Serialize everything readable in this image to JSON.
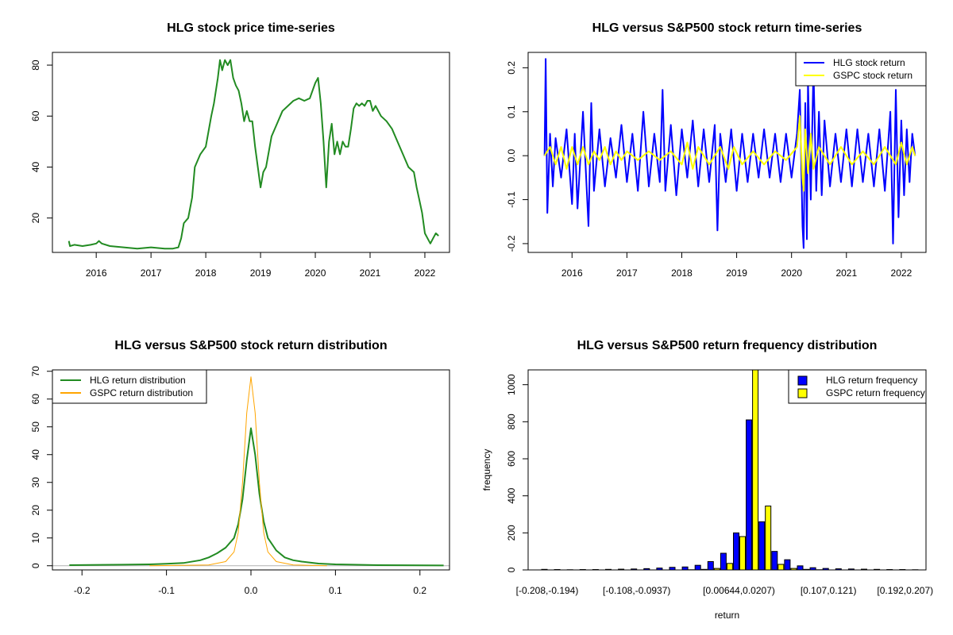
{
  "colors": {
    "hlg_price": "#228B22",
    "hlg_return": "#0000FF",
    "gspc_return": "#FFFF00",
    "hlg_density": "#228B22",
    "gspc_density": "#FFA500",
    "hlg_hist": "#0000FF",
    "gspc_hist": "#FFFF00"
  },
  "chart_data": [
    {
      "type": "line",
      "title": "HLG stock price time-series",
      "xlabel": "",
      "ylabel": "",
      "xlim": [
        2015.2,
        2022.45
      ],
      "ylim": [
        6.5,
        85
      ],
      "x_ticks": [
        2016,
        2017,
        2018,
        2019,
        2020,
        2021,
        2022
      ],
      "x_tick_labels": [
        "2016",
        "2017",
        "2018",
        "2019",
        "2020",
        "2021",
        "2022"
      ],
      "y_ticks": [
        20,
        40,
        60,
        80
      ],
      "y_tick_labels": [
        "20",
        "40",
        "60",
        "80"
      ],
      "legend": null,
      "series": [
        {
          "color": "#228B22",
          "x": [
            2015.5,
            2015.52,
            2015.6,
            2015.75,
            2015.9,
            2016.0,
            2016.05,
            2016.1,
            2016.25,
            2016.5,
            2016.75,
            2017.0,
            2017.25,
            2017.4,
            2017.5,
            2017.55,
            2017.6,
            2017.68,
            2017.75,
            2017.8,
            2017.9,
            2018.0,
            2018.1,
            2018.15,
            2018.22,
            2018.26,
            2018.3,
            2018.35,
            2018.4,
            2018.45,
            2018.5,
            2018.55,
            2018.6,
            2018.65,
            2018.7,
            2018.75,
            2018.8,
            2018.85,
            2018.9,
            2019.0,
            2019.05,
            2019.1,
            2019.2,
            2019.3,
            2019.4,
            2019.5,
            2019.6,
            2019.7,
            2019.8,
            2019.9,
            2020.0,
            2020.05,
            2020.1,
            2020.15,
            2020.2,
            2020.25,
            2020.3,
            2020.35,
            2020.4,
            2020.45,
            2020.5,
            2020.55,
            2020.6,
            2020.65,
            2020.7,
            2020.75,
            2020.8,
            2020.85,
            2020.9,
            2020.95,
            2021.0,
            2021.05,
            2021.1,
            2021.2,
            2021.3,
            2021.4,
            2021.5,
            2021.6,
            2021.7,
            2021.8,
            2021.85,
            2021.9,
            2021.95,
            2022.0,
            2022.05,
            2022.1,
            2022.15,
            2022.2,
            2022.25
          ],
          "y": [
            11,
            9,
            9.5,
            9,
            9.5,
            10,
            11,
            10,
            9,
            8.5,
            8,
            8.5,
            8,
            8,
            8.5,
            12,
            18,
            20,
            28,
            40,
            45,
            48,
            60,
            65,
            75,
            82,
            78,
            82,
            80,
            82,
            75,
            72,
            70,
            65,
            58,
            62,
            58,
            58,
            48,
            32,
            38,
            40,
            52,
            57,
            62,
            64,
            66,
            67,
            66,
            67,
            73,
            75,
            65,
            50,
            32,
            50,
            57,
            45,
            50,
            45,
            50,
            48,
            48,
            55,
            63,
            65,
            64,
            65,
            64,
            66,
            66,
            62,
            64,
            60,
            58,
            55,
            50,
            45,
            40,
            38,
            32,
            27,
            22,
            14,
            12,
            10,
            12,
            14,
            13
          ]
        }
      ]
    },
    {
      "type": "line",
      "title": "HLG versus S&P500 stock return time-series",
      "xlabel": "",
      "ylabel": "",
      "xlim": [
        2015.2,
        2022.45
      ],
      "ylim": [
        -0.22,
        0.235
      ],
      "x_ticks": [
        2016,
        2017,
        2018,
        2019,
        2020,
        2021,
        2022
      ],
      "x_tick_labels": [
        "2016",
        "2017",
        "2018",
        "2019",
        "2020",
        "2021",
        "2022"
      ],
      "y_ticks": [
        -0.2,
        -0.1,
        0.0,
        0.1,
        0.2
      ],
      "y_tick_labels": [
        "-0.2",
        "-0.1",
        "0.0",
        "0.1",
        "0.2"
      ],
      "legend": "top-right",
      "series": [
        {
          "name": "HLG stock return",
          "color": "#0000FF",
          "x": [
            2015.5,
            2015.52,
            2015.55,
            2015.6,
            2015.65,
            2015.7,
            2015.8,
            2015.9,
            2016.0,
            2016.05,
            2016.1,
            2016.2,
            2016.3,
            2016.35,
            2016.4,
            2016.5,
            2016.6,
            2016.7,
            2016.8,
            2016.9,
            2017.0,
            2017.1,
            2017.2,
            2017.3,
            2017.4,
            2017.5,
            2017.6,
            2017.65,
            2017.7,
            2017.8,
            2017.9,
            2018.0,
            2018.1,
            2018.2,
            2018.3,
            2018.4,
            2018.5,
            2018.6,
            2018.65,
            2018.7,
            2018.8,
            2018.9,
            2019.0,
            2019.1,
            2019.2,
            2019.3,
            2019.4,
            2019.5,
            2019.6,
            2019.7,
            2019.8,
            2019.9,
            2020.0,
            2020.1,
            2020.15,
            2020.2,
            2020.22,
            2020.25,
            2020.28,
            2020.3,
            2020.35,
            2020.4,
            2020.45,
            2020.5,
            2020.55,
            2020.6,
            2020.7,
            2020.8,
            2020.9,
            2021.0,
            2021.1,
            2021.2,
            2021.3,
            2021.4,
            2021.5,
            2021.6,
            2021.7,
            2021.8,
            2021.85,
            2021.9,
            2021.95,
            2022.0,
            2022.05,
            2022.1,
            2022.15,
            2022.2,
            2022.25
          ],
          "y": [
            0.0,
            0.22,
            -0.13,
            0.05,
            -0.07,
            0.04,
            -0.05,
            0.06,
            -0.11,
            0.05,
            -0.12,
            0.1,
            -0.16,
            0.12,
            -0.08,
            0.06,
            -0.07,
            0.04,
            -0.05,
            0.07,
            -0.06,
            0.05,
            -0.08,
            0.1,
            -0.07,
            0.05,
            -0.06,
            0.15,
            -0.08,
            0.07,
            -0.09,
            0.06,
            -0.05,
            0.08,
            -0.07,
            0.06,
            -0.06,
            0.07,
            -0.17,
            0.05,
            -0.06,
            0.06,
            -0.08,
            0.05,
            -0.06,
            0.05,
            -0.05,
            0.06,
            -0.05,
            0.05,
            -0.06,
            0.05,
            -0.05,
            0.05,
            0.15,
            -0.16,
            -0.21,
            0.12,
            -0.19,
            0.17,
            -0.1,
            0.2,
            -0.08,
            0.1,
            -0.09,
            0.08,
            -0.07,
            0.05,
            -0.06,
            0.06,
            -0.07,
            0.06,
            -0.06,
            0.05,
            -0.07,
            0.06,
            -0.08,
            0.1,
            -0.2,
            0.15,
            -0.14,
            0.08,
            -0.09,
            0.06,
            -0.06,
            0.05,
            0.0
          ]
        },
        {
          "name": "GSPC stock return",
          "color": "#FFFF00",
          "x": [
            2015.5,
            2015.6,
            2015.7,
            2015.8,
            2015.9,
            2016.0,
            2016.1,
            2016.2,
            2016.3,
            2016.4,
            2016.5,
            2016.6,
            2016.7,
            2016.8,
            2016.9,
            2017.0,
            2017.2,
            2017.4,
            2017.6,
            2017.8,
            2018.0,
            2018.1,
            2018.2,
            2018.3,
            2018.5,
            2018.7,
            2018.85,
            2018.95,
            2019.1,
            2019.3,
            2019.5,
            2019.7,
            2019.9,
            2020.1,
            2020.15,
            2020.2,
            2020.22,
            2020.25,
            2020.3,
            2020.35,
            2020.4,
            2020.5,
            2020.7,
            2020.9,
            2021.1,
            2021.3,
            2021.5,
            2021.7,
            2021.9,
            2022.0,
            2022.1,
            2022.2,
            2022.25
          ],
          "y": [
            0.0,
            0.02,
            -0.02,
            0.02,
            -0.03,
            0.02,
            -0.02,
            0.02,
            -0.02,
            0.01,
            -0.01,
            0.02,
            -0.02,
            0.01,
            -0.01,
            0.01,
            -0.01,
            0.01,
            -0.01,
            0.01,
            -0.02,
            0.03,
            -0.03,
            0.02,
            -0.02,
            0.02,
            -0.03,
            0.02,
            -0.02,
            0.01,
            -0.02,
            0.01,
            -0.01,
            0.02,
            0.09,
            -0.05,
            -0.08,
            0.06,
            -0.04,
            0.05,
            -0.03,
            0.02,
            -0.02,
            0.02,
            -0.02,
            0.01,
            -0.02,
            0.02,
            -0.02,
            0.03,
            -0.02,
            0.02,
            0.0
          ]
        }
      ]
    },
    {
      "type": "line",
      "title": "HLG versus S&P500 stock return distribution",
      "xlabel": "",
      "ylabel": "",
      "xlim": [
        -0.235,
        0.235
      ],
      "ylim": [
        -1.5,
        70.5
      ],
      "x_ticks": [
        -0.2,
        -0.1,
        0.0,
        0.1,
        0.2
      ],
      "x_tick_labels": [
        "-0.2",
        "-0.1",
        "0.0",
        "0.1",
        "0.2"
      ],
      "y_ticks": [
        0,
        10,
        20,
        30,
        40,
        50,
        60,
        70
      ],
      "y_tick_labels": [
        "0",
        "10",
        "20",
        "30",
        "40",
        "50",
        "60",
        "70"
      ],
      "legend": "top-left",
      "baseline": 0,
      "series": [
        {
          "name": "HLG return distribution",
          "color": "#228B22",
          "x": [
            -0.215,
            -0.15,
            -0.12,
            -0.1,
            -0.08,
            -0.06,
            -0.05,
            -0.04,
            -0.03,
            -0.02,
            -0.015,
            -0.01,
            -0.005,
            0.0,
            0.005,
            0.01,
            0.015,
            0.02,
            0.03,
            0.04,
            0.05,
            0.06,
            0.08,
            0.1,
            0.12,
            0.15,
            0.228
          ],
          "y": [
            0.2,
            0.4,
            0.5,
            0.7,
            1.0,
            2.0,
            3.0,
            4.5,
            6.5,
            10.0,
            15.0,
            24.0,
            38.0,
            49.5,
            40.0,
            26.0,
            16.0,
            10.0,
            5.5,
            3.0,
            2.0,
            1.5,
            0.8,
            0.5,
            0.4,
            0.2,
            0.1
          ]
        },
        {
          "name": "GSPC return distribution",
          "color": "#FFA500",
          "x": [
            -0.12,
            -0.05,
            -0.03,
            -0.02,
            -0.015,
            -0.01,
            -0.005,
            0.0,
            0.005,
            0.01,
            0.015,
            0.02,
            0.03,
            0.05,
            0.09
          ],
          "y": [
            0.0,
            0.3,
            1.5,
            5.0,
            12.0,
            30.0,
            55.0,
            68.0,
            55.0,
            30.0,
            12.0,
            5.0,
            1.5,
            0.3,
            0.0
          ]
        }
      ]
    },
    {
      "type": "bar",
      "title": "HLG versus S&P500 return frequency distribution",
      "xlabel": "return",
      "ylabel": "frequency",
      "ylim": [
        0,
        1080
      ],
      "y_ticks": [
        0,
        200,
        400,
        600,
        800,
        1000
      ],
      "y_tick_labels": [
        "0",
        "200",
        "400",
        "600",
        "800",
        "1000"
      ],
      "x_tick_labels": [
        "[-0.208,-0.194)",
        "[-0.108,-0.0937)",
        "[0.00644,0.0207)",
        "[0.107,0.121)",
        "[0.192,0.207)"
      ],
      "x_tick_bins": [
        0,
        7,
        15,
        22,
        28
      ],
      "legend": "top-right",
      "series": [
        {
          "name": "HLG return frequency",
          "color": "#0000FF",
          "values": [
            3,
            2,
            1,
            2,
            2,
            3,
            4,
            5,
            7,
            10,
            14,
            16,
            25,
            45,
            90,
            200,
            810,
            260,
            100,
            55,
            22,
            12,
            8,
            6,
            5,
            4,
            3,
            2,
            2,
            1
          ]
        },
        {
          "name": "GSPC return frequency",
          "color": "#FFFF00",
          "values": [
            0,
            0,
            0,
            0,
            0,
            0,
            0,
            0,
            0,
            0,
            0,
            1,
            3,
            8,
            35,
            180,
            1090,
            345,
            30,
            8,
            3,
            1,
            0,
            0,
            0,
            0,
            0,
            0,
            0,
            0
          ]
        }
      ]
    }
  ]
}
